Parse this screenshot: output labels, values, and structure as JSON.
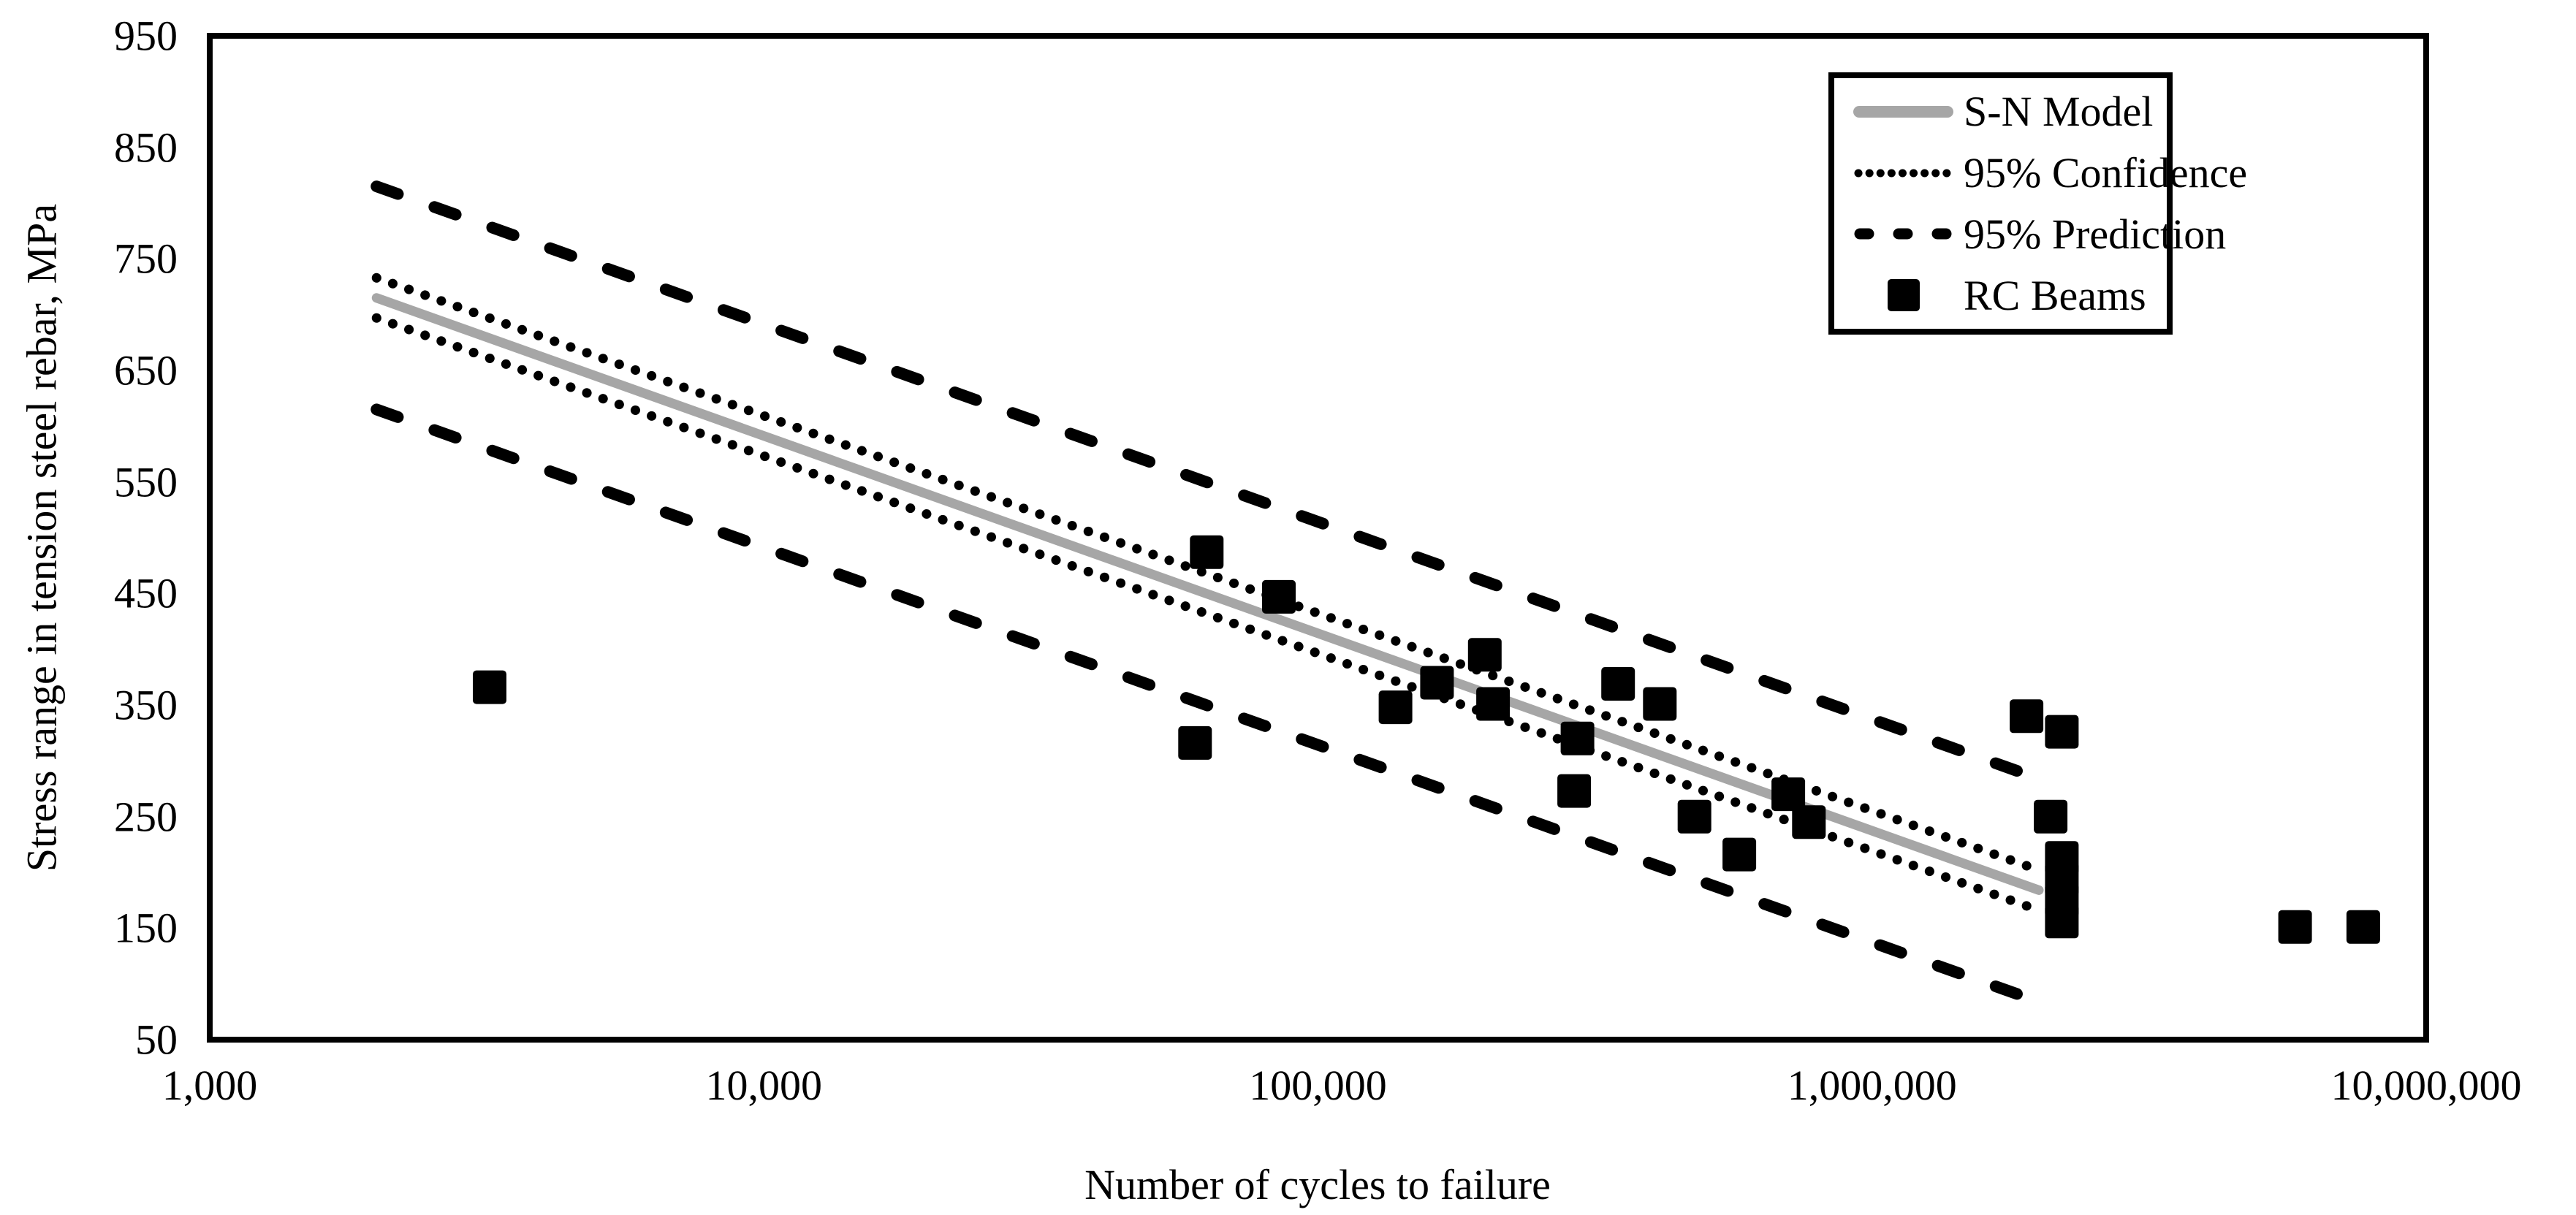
{
  "colors": {
    "background": "#FFFFFF",
    "text": "#000000",
    "frame": "#000000",
    "model_line": "#A6A6A6",
    "confidence_line": "#000000",
    "prediction_line": "#000000",
    "data_marker": "#000000"
  },
  "legend": {
    "items": [
      {
        "label": "S-N Model",
        "marker": "gray-solid-line"
      },
      {
        "label": "95% Confidence",
        "marker": "black-dotted-line"
      },
      {
        "label": "95% Prediction",
        "marker": "black-dashed-line"
      },
      {
        "label": "RC Beams",
        "marker": "black-square"
      }
    ]
  },
  "chart_data": {
    "type": "scatter",
    "title": "",
    "xlabel": "Number of cycles to failure",
    "ylabel": "Stress range in tension steel rebar, MPa",
    "x_scale": "log10",
    "xlim": [
      1000,
      10000000
    ],
    "ylim": [
      50,
      950
    ],
    "grid": false,
    "legend_position": "top-right",
    "x_ticks": [
      "1,000",
      "10,000",
      "100,000",
      "1,000,000",
      "10,000,000"
    ],
    "y_ticks": [
      "950",
      "850",
      "750",
      "650",
      "550",
      "450",
      "350",
      "250",
      "150",
      "50"
    ],
    "model_line": {
      "name": "S-N Model",
      "N_start": 2000,
      "S_start": 715,
      "N_end": 2000000,
      "S_end": 184,
      "slope_mpa_per_decade": -177
    },
    "confidence_band": {
      "name": "95% Confidence",
      "offset_mpa": 18,
      "style": "dotted"
    },
    "prediction_band": {
      "name": "95% Prediction",
      "offset_mpa": 100,
      "style": "dashed"
    },
    "series": [
      {
        "name": "RC Beams",
        "marker": "black-square",
        "points_N_S": [
          [
            3200,
            366
          ],
          [
            60000,
            316
          ],
          [
            63000,
            487
          ],
          [
            85000,
            447
          ],
          [
            138000,
            348
          ],
          [
            164000,
            370
          ],
          [
            200000,
            395
          ],
          [
            207000,
            351
          ],
          [
            290000,
            273
          ],
          [
            294000,
            320
          ],
          [
            348000,
            369
          ],
          [
            414000,
            351
          ],
          [
            478000,
            250
          ],
          [
            576000,
            216
          ],
          [
            706000,
            270
          ],
          [
            769000,
            245
          ],
          [
            1900000,
            340
          ],
          [
            2100000,
            250
          ],
          [
            2200000,
            326
          ],
          [
            2200000,
            213
          ],
          [
            2200000,
            194
          ],
          [
            2200000,
            175
          ],
          [
            2200000,
            156
          ],
          [
            5800000,
            151
          ],
          [
            7700000,
            151
          ]
        ]
      }
    ]
  }
}
